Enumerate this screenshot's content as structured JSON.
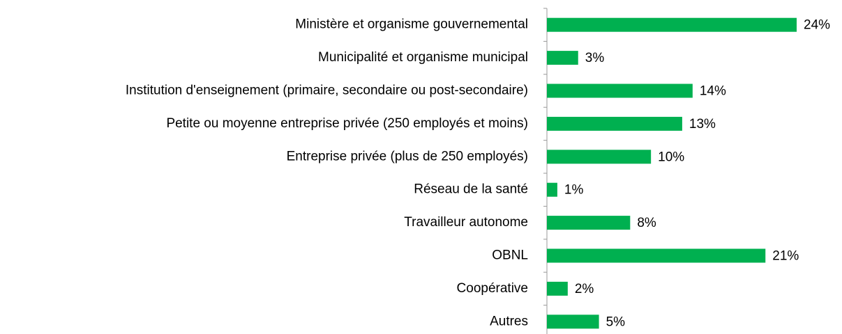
{
  "chart_data": {
    "type": "bar",
    "orientation": "horizontal",
    "categories": [
      "Ministère et organisme gouvernemental",
      "Municipalité et organisme municipal",
      "Institution d'enseignement (primaire, secondaire ou post-secondaire)",
      "Petite ou moyenne entreprise privée (250 employés et moins)",
      "Entreprise privée (plus de 250 employés)",
      "Réseau de la santé",
      "Travailleur autonome",
      "OBNL",
      "Coopérative",
      "Autres"
    ],
    "values": [
      24,
      3,
      14,
      13,
      10,
      1,
      8,
      21,
      2,
      5
    ],
    "value_labels": [
      "24%",
      "3%",
      "14%",
      "13%",
      "10%",
      "1%",
      "8%",
      "21%",
      "2%",
      "5%"
    ],
    "color": "#00b050"
  }
}
